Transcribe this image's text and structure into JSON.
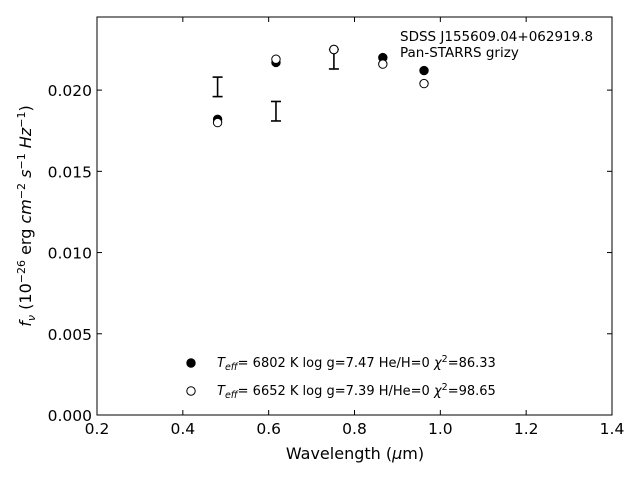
{
  "chart_data": {
    "type": "scatter",
    "xlabel": "Wavelength (μm)",
    "ylabel": "f_ν (10^−26 erg cm^−2 s^−1 Hz^−1)",
    "xlim": [
      0.2,
      1.4
    ],
    "ylim": [
      0.0,
      0.0245
    ],
    "xticks": [
      "0.2",
      "0.4",
      "0.6",
      "0.8",
      "1.0",
      "1.2",
      "1.4"
    ],
    "yticks": [
      "0.000",
      "0.005",
      "0.010",
      "0.015",
      "0.020"
    ],
    "annotations": [
      "SDSS J155609.04+062919.8",
      "Pan-STARRS grizy"
    ],
    "grid": false,
    "legend_position": "lower-center",
    "observed": {
      "x": [
        0.481,
        0.617,
        0.752,
        0.866,
        0.962
      ],
      "y": [
        0.0202,
        0.0187,
        0.0219,
        null,
        null
      ],
      "yerr": [
        0.0006,
        0.0006,
        0.0006,
        null,
        null
      ]
    },
    "series": [
      {
        "marker": "filled-circle",
        "legend": {
          "pre": "T",
          "sub": "eff",
          "mid": "=  6802 K  log g=7.47  He/H=0  ",
          "chi": "χ",
          "sup": "2",
          "post": "=86.33"
        },
        "x": [
          0.481,
          0.617,
          0.752,
          0.866,
          0.962
        ],
        "y": [
          0.0182,
          0.0217,
          0.0225,
          0.022,
          0.0212
        ]
      },
      {
        "marker": "open-circle",
        "legend": {
          "pre": "T",
          "sub": "eff",
          "mid": "=  6652 K  log g=7.39  H/He=0  ",
          "chi": "χ",
          "sup": "2",
          "post": "=98.65"
        },
        "x": [
          0.481,
          0.617,
          0.752,
          0.866,
          0.962
        ],
        "y": [
          0.018,
          0.0219,
          0.0225,
          0.0216,
          0.0204
        ]
      }
    ]
  }
}
